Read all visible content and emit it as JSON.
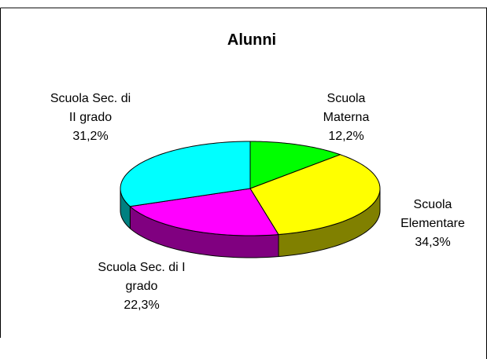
{
  "chart_data": {
    "type": "pie3d",
    "title": "Alunni",
    "categories": [
      "Scuola Materna",
      "Scuola Elementare",
      "Scuola Sec. di I grado",
      "Scuola Sec. di II grado"
    ],
    "values": [
      12.2,
      34.3,
      22.3,
      31.2
    ],
    "value_labels": [
      "12,2%",
      "34,3%",
      "22,3%",
      "31,2%"
    ],
    "colors": [
      "#00ff00",
      "#ffff00",
      "#ff00ff",
      "#00ffff"
    ],
    "side_colors": [
      "#008000",
      "#808000",
      "#800080",
      "#008080"
    ]
  }
}
